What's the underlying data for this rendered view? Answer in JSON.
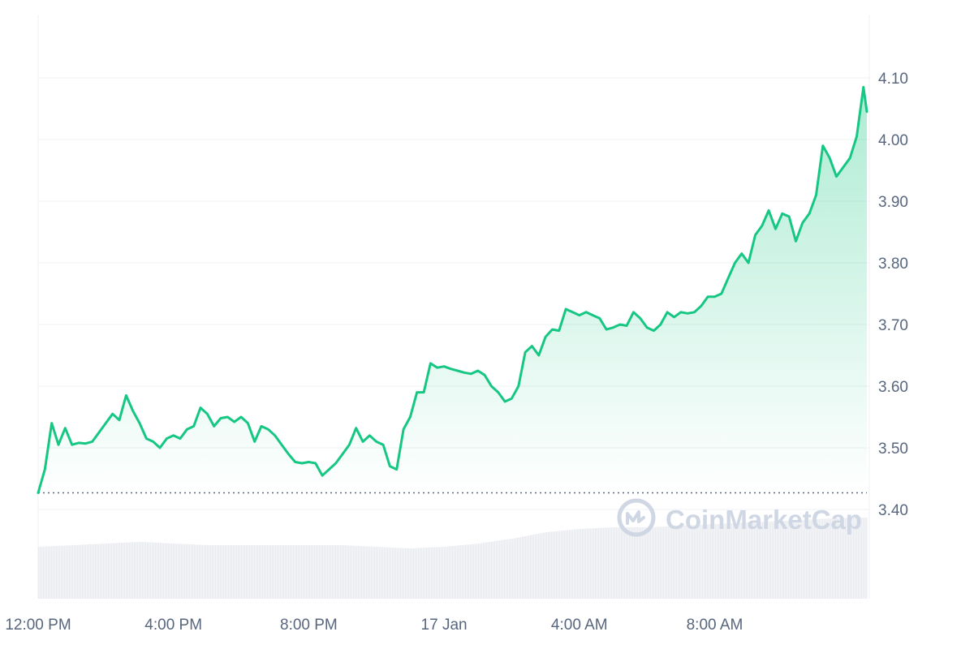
{
  "watermark": "CoinMarketCap",
  "colors": {
    "line": "#16c784",
    "area_top": "#16c784",
    "grid": "#eef0f3",
    "baseline": "#58667e",
    "volume": "#e8ebf1",
    "axis_text": "#58667e",
    "watermark": "#cfd6e4"
  },
  "chart_data": {
    "type": "line",
    "title": "",
    "xlabel": "",
    "ylabel": "",
    "y_axis_position": "right",
    "ylim": [
      3.3,
      4.2
    ],
    "x_ticks": [
      {
        "t": 0,
        "label": "12:00 PM"
      },
      {
        "t": 4,
        "label": "4:00 PM"
      },
      {
        "t": 8,
        "label": "8:00 PM"
      },
      {
        "t": 12,
        "label": "17 Jan"
      },
      {
        "t": 16,
        "label": "4:00 AM"
      },
      {
        "t": 20,
        "label": "8:00 AM"
      }
    ],
    "y_ticks": [
      3.4,
      3.5,
      3.6,
      3.7,
      3.8,
      3.9,
      4.0,
      4.1
    ],
    "y_tick_labels": [
      "3.40",
      "3.50",
      "3.60",
      "3.70",
      "3.80",
      "3.90",
      "4.00",
      "4.10"
    ],
    "reference_line": 3.427,
    "x_range_hours": [
      0,
      24.5
    ],
    "series": [
      {
        "x": [
          0,
          0.2,
          0.4,
          0.6,
          0.8,
          1.0,
          1.2,
          1.4,
          1.6,
          1.8,
          2.0,
          2.2,
          2.4,
          2.6,
          2.8,
          3.0,
          3.2,
          3.4,
          3.6,
          3.8,
          4.0,
          4.2,
          4.4,
          4.6,
          4.8,
          5.0,
          5.2,
          5.4,
          5.6,
          5.8,
          6.0,
          6.2,
          6.4,
          6.6,
          6.8,
          7.0,
          7.2,
          7.4,
          7.6,
          7.8,
          8.0,
          8.2,
          8.4,
          8.6,
          8.8,
          9.0,
          9.2,
          9.4,
          9.6,
          9.8,
          10.0,
          10.2,
          10.4,
          10.6,
          10.8,
          11.0,
          11.2,
          11.4,
          11.6,
          11.8,
          12.0,
          12.2,
          12.4,
          12.6,
          12.8,
          13.0,
          13.2,
          13.4,
          13.6,
          13.8,
          14.0,
          14.2,
          14.4,
          14.6,
          14.8,
          15.0,
          15.2,
          15.4,
          15.6,
          15.8,
          16.0,
          16.2,
          16.4,
          16.6,
          16.8,
          17.0,
          17.2,
          17.4,
          17.6,
          17.8,
          18.0,
          18.2,
          18.4,
          18.6,
          18.8,
          19.0,
          19.2,
          19.4,
          19.6,
          19.8,
          20.0,
          20.2,
          20.4,
          20.6,
          20.8,
          21.0,
          21.2,
          21.4,
          21.6,
          21.8,
          22.0,
          22.2,
          22.4,
          22.6,
          22.8,
          23.0,
          23.2,
          23.4,
          23.6,
          23.8,
          24.0,
          24.2,
          24.4,
          24.5
        ],
        "y": [
          3.427,
          3.465,
          3.54,
          3.505,
          3.532,
          3.505,
          3.508,
          3.507,
          3.51,
          3.525,
          3.54,
          3.555,
          3.545,
          3.585,
          3.56,
          3.54,
          3.515,
          3.51,
          3.5,
          3.515,
          3.52,
          3.515,
          3.53,
          3.535,
          3.565,
          3.555,
          3.535,
          3.548,
          3.55,
          3.542,
          3.55,
          3.54,
          3.51,
          3.535,
          3.53,
          3.52,
          3.505,
          3.49,
          3.477,
          3.475,
          3.477,
          3.475,
          3.455,
          3.465,
          3.475,
          3.49,
          3.505,
          3.532,
          3.51,
          3.52,
          3.51,
          3.505,
          3.47,
          3.465,
          3.53,
          3.55,
          3.59,
          3.59,
          3.637,
          3.63,
          3.632,
          3.628,
          3.625,
          3.622,
          3.62,
          3.625,
          3.618,
          3.6,
          3.59,
          3.575,
          3.58,
          3.6,
          3.655,
          3.665,
          3.65,
          3.68,
          3.692,
          3.69,
          3.725,
          3.72,
          3.715,
          3.72,
          3.715,
          3.71,
          3.692,
          3.695,
          3.7,
          3.698,
          3.72,
          3.71,
          3.695,
          3.69,
          3.7,
          3.72,
          3.712,
          3.72,
          3.718,
          3.72,
          3.73,
          3.745,
          3.745,
          3.75,
          3.775,
          3.8,
          3.815,
          3.8,
          3.845,
          3.86,
          3.885,
          3.855,
          3.88,
          3.875,
          3.835,
          3.865,
          3.88,
          3.91,
          3.99,
          3.97,
          3.94,
          3.955,
          3.97,
          4.005,
          4.085,
          4.045
        ]
      }
    ],
    "volume": {
      "x": [
        0,
        1,
        2,
        3,
        4,
        5,
        6,
        7,
        8,
        9,
        10,
        11,
        12,
        13,
        14,
        15,
        16,
        17,
        18,
        19,
        20,
        21,
        22,
        23,
        24,
        24.5
      ],
      "relative_height": [
        0.32,
        0.33,
        0.34,
        0.35,
        0.34,
        0.33,
        0.33,
        0.33,
        0.33,
        0.33,
        0.32,
        0.31,
        0.32,
        0.34,
        0.37,
        0.41,
        0.43,
        0.44,
        0.44,
        0.45,
        0.46,
        0.47,
        0.48,
        0.49,
        0.5,
        0.5
      ]
    }
  }
}
